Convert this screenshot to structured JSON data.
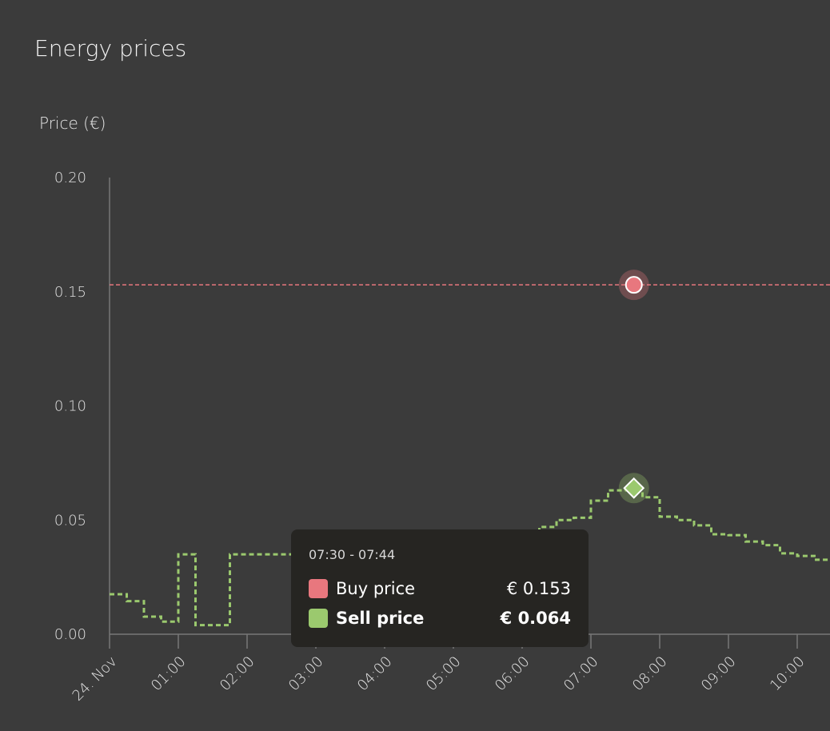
{
  "title": "Energy prices",
  "chart_data": {
    "type": "line",
    "title": "Energy prices",
    "ylabel": "Price (€)",
    "xlabel": "",
    "ylim": [
      0,
      0.2
    ],
    "yticks": [
      "0.00",
      "0.05",
      "0.10",
      "0.15",
      "0.20"
    ],
    "xticks": [
      "24. Nov",
      "01:00",
      "02:00",
      "03:00",
      "04:00",
      "05:00",
      "06:00",
      "07:00",
      "08:00",
      "09:00",
      "10:00"
    ],
    "interval_minutes": 15,
    "series": [
      {
        "name": "Buy price",
        "color": "#e8777e",
        "style": "dashed",
        "values_constant": 0.153
      },
      {
        "name": "Sell price",
        "color": "#9bc96e",
        "style": "dashed-step",
        "values": [
          0.0175,
          0.0145,
          0.0077,
          0.0055,
          0.035,
          0.004,
          0.004,
          0.035,
          0.035,
          0.035,
          0.035,
          0.035,
          0.035,
          0.036,
          0.036,
          0.037,
          0.038,
          0.038,
          0.039,
          0.04,
          0.041,
          0.042,
          0.043,
          0.044,
          0.045,
          0.047,
          0.05,
          0.051,
          0.0585,
          0.063,
          0.064,
          0.06,
          0.0515,
          0.05,
          0.0477,
          0.0438,
          0.0434,
          0.0406,
          0.039,
          0.0354,
          0.0343,
          0.0326
        ]
      }
    ],
    "highlight_index": 30,
    "tooltip": {
      "time": "07:30 - 07:44",
      "rows": [
        {
          "label": "Buy price",
          "value": "€ 0.153",
          "color": "#e8777e"
        },
        {
          "label": "Sell price",
          "value": "€ 0.064",
          "color": "#9bc96e"
        }
      ]
    }
  }
}
